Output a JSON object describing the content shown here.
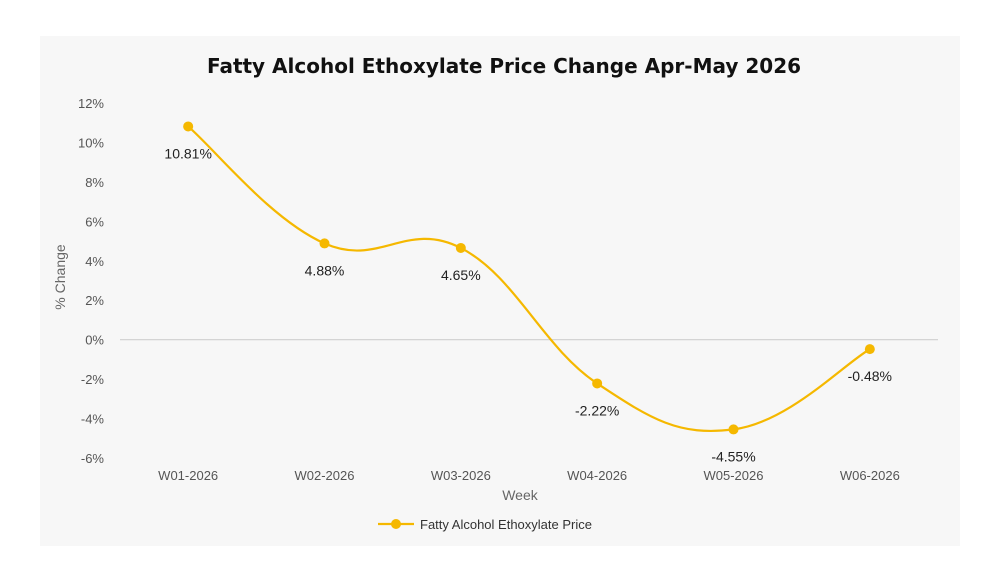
{
  "chart_data": {
    "type": "line",
    "title": "Fatty Alcohol Ethoxylate Price Change Apr-May 2026",
    "xlabel": "Week",
    "ylabel": "% Change",
    "categories": [
      "W01-2026",
      "W02-2026",
      "W03-2026",
      "W04-2026",
      "W05-2026",
      "W06-2026"
    ],
    "series": [
      {
        "name": "Fatty Alcohol Ethoxylate Price",
        "values": [
          10.81,
          4.88,
          4.65,
          -2.22,
          -4.55,
          -0.48
        ],
        "data_labels": [
          "10.81%",
          "4.88%",
          "4.65%",
          "-2.22%",
          "-4.55%",
          "-0.48%"
        ],
        "color": "#F5B800"
      }
    ],
    "y_ticks": [
      12,
      10,
      8,
      6,
      4,
      2,
      0,
      -2,
      -4,
      -6
    ],
    "y_tick_labels": [
      "12%",
      "10%",
      "8%",
      "6%",
      "4%",
      "2%",
      "0%",
      "-2%",
      "-4%",
      "-6%"
    ],
    "ylim": [
      -6,
      12
    ],
    "smooth": true,
    "grid": false,
    "zero_line": true,
    "legend_position": "bottom",
    "background": "#F7F7F7"
  }
}
